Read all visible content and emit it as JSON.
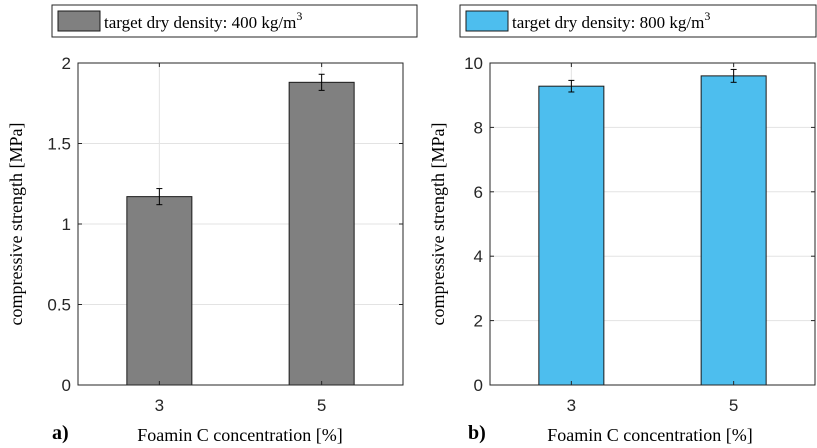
{
  "chart_data": [
    {
      "type": "bar",
      "panel_label": "a)",
      "categories": [
        "3",
        "5"
      ],
      "values": [
        1.17,
        1.88
      ],
      "errors": [
        0.05,
        0.05
      ],
      "ylim": [
        0,
        2
      ],
      "yticks": [
        0,
        0.5,
        1,
        1.5,
        2
      ],
      "ytick_labels": [
        "0",
        "0.5",
        "1",
        "1.5",
        "2"
      ],
      "ylabel": "compressive strength [MPa]",
      "xlabel": "Foamin C concentration [%]",
      "legend": {
        "label": "target dry density: 400 kg/m",
        "superscript": "3",
        "position": "top"
      },
      "bar_color": "#808080",
      "grid": true
    },
    {
      "type": "bar",
      "panel_label": "b)",
      "categories": [
        "3",
        "5"
      ],
      "values": [
        9.28,
        9.6
      ],
      "errors": [
        0.18,
        0.2
      ],
      "ylim": [
        0,
        10
      ],
      "yticks": [
        0,
        2,
        4,
        6,
        8,
        10
      ],
      "ytick_labels": [
        "0",
        "2",
        "4",
        "6",
        "8",
        "10"
      ],
      "ylabel": "compressive strength [MPa]",
      "xlabel": "Foamin C concentration [%]",
      "legend": {
        "label": "target dry density: 800 kg/m",
        "superscript": "3",
        "position": "top"
      },
      "bar_color": "#4dbeee",
      "grid": true
    }
  ]
}
